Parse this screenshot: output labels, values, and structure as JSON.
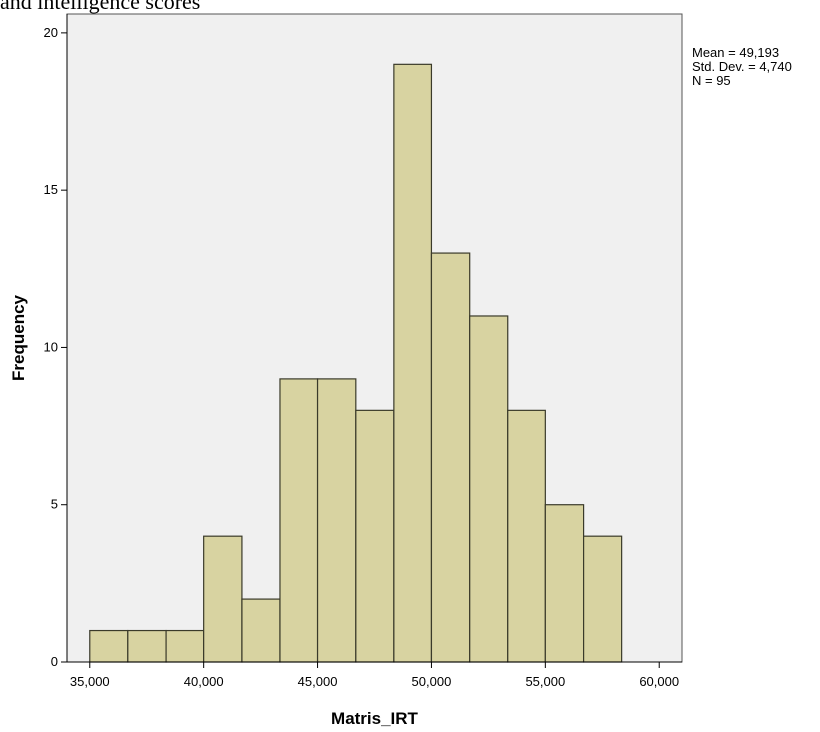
{
  "caption_fragment": "and intelligence scores",
  "chart_data": {
    "type": "bar",
    "title": "",
    "xlabel": "Matris_IRT",
    "ylabel": "Frequency",
    "xlim": [
      34000,
      61000
    ],
    "ylim": [
      0,
      20.6
    ],
    "x_ticks": [
      35000,
      40000,
      45000,
      50000,
      55000,
      60000
    ],
    "x_tick_labels": [
      "35,000",
      "40,000",
      "45,000",
      "50,000",
      "55,000",
      "60,000"
    ],
    "y_ticks": [
      0,
      5,
      10,
      15,
      20
    ],
    "y_tick_labels": [
      "0",
      "5",
      "10",
      "15",
      "20"
    ],
    "bin_edges": [
      35000,
      36670,
      38350,
      40000,
      41680,
      43350,
      45000,
      46680,
      48350,
      50000,
      51680,
      53350,
      55000,
      56680,
      58350
    ],
    "values": [
      1,
      1,
      1,
      4,
      2,
      9,
      9,
      8,
      19,
      13,
      11,
      8,
      5,
      4
    ],
    "grid": false,
    "stats": [
      "Mean = 49,193",
      "Std. Dev. = 4,740",
      "N = 95"
    ],
    "colors": {
      "bar_fill": "#d8d3a1",
      "bar_stroke": "#3a3a2a",
      "plot_background": "#f0f0f0",
      "axis": "#000000"
    }
  }
}
